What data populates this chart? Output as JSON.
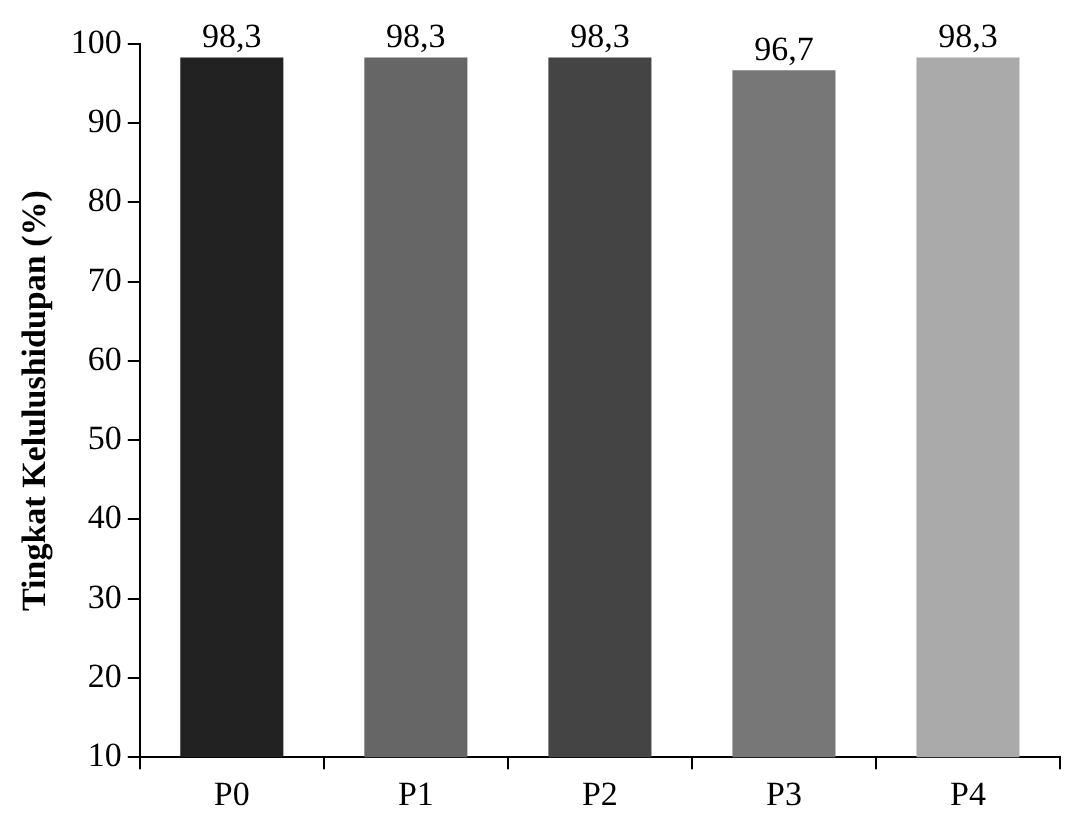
{
  "chart_data": {
    "type": "bar",
    "ylabel": "Tingkat Kelulushidupan (%)",
    "categories": [
      "P0",
      "P1",
      "P2",
      "P3",
      "P4"
    ],
    "values": [
      98.3,
      98.3,
      98.3,
      96.7,
      98.3
    ],
    "value_labels": [
      "98,3",
      "98,3",
      "98,3",
      "96,7",
      "98,3"
    ],
    "colors": [
      "#222222",
      "#666666",
      "#444444",
      "#777777",
      "#aaaaaa"
    ],
    "ylim": [
      10,
      100
    ],
    "yticks": [
      10,
      20,
      30,
      40,
      50,
      60,
      70,
      80,
      90,
      100
    ],
    "grid": false,
    "legend": false
  }
}
